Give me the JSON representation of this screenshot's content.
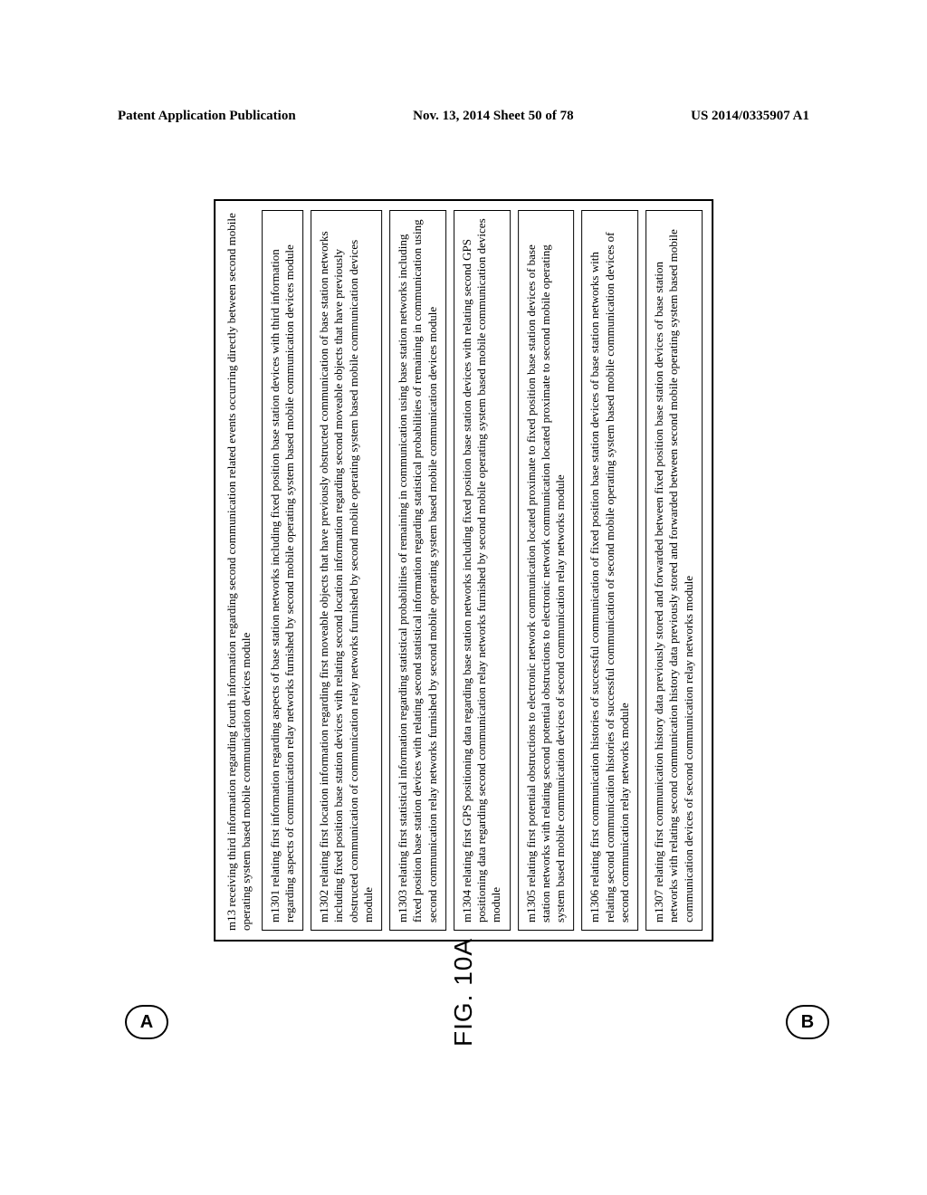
{
  "header": {
    "left": "Patent Application Publication",
    "center": "Nov. 13, 2014  Sheet 50 of 78",
    "right": "US 2014/0335907 A1"
  },
  "figure": {
    "label": "FIG. 10A",
    "connector_a": "A",
    "connector_b": "B",
    "outer_title": "m13 receiving third information regarding fourth information regarding second communication related events occurring directly between second mobile operating system based mobile communication devices module",
    "boxes": [
      "m1301 relating first information regarding aspects of base station networks including fixed position base station devices with third information regarding aspects of communication relay networks furnished by second mobile operating system based mobile communication devices module",
      "m1302 relating first location information regarding first moveable objects that have previously obstructed communication of base station networks including fixed position base station devices with relating second location information regarding second moveable objects that have previously obstructed communication of communication relay networks furnished by second mobile operating system based mobile communication devices module",
      "m1303 relating first statistical information regarding statistical probabilities of remaining in communication using base station networks including fixed position base station devices with relating second statistical information regarding statistical probabilities of remaining in communication using second communication relay networks furnished by second mobile operating system based mobile communication devices module",
      "m1304 relating first GPS positioning data regarding base station networks including fixed position base station devices with relating second GPS positioning data regarding second communication relay networks furnished by second mobile operating system based mobile communication devices module",
      "m1305 relating first potential obstructions to electronic network communication located proximate to fixed position base station devices of base station networks with relating second potential obstructions to electronic network communication located proximate to second mobile operating system based mobile communication devices of second communication relay networks module",
      "m1306 relating first communication histories of successful communication of fixed position base station devices of base station networks with relating second communication histories of successful communication of second mobile operating system based mobile communication devices of second communication relay networks  module",
      "m1307 relating first communication history data previously stored and forwarded between fixed position base station devices of base station networks with relating second communication history data previously stored and forwarded between second mobile operating system based mobile communication devices of second communication relay networks module"
    ]
  }
}
